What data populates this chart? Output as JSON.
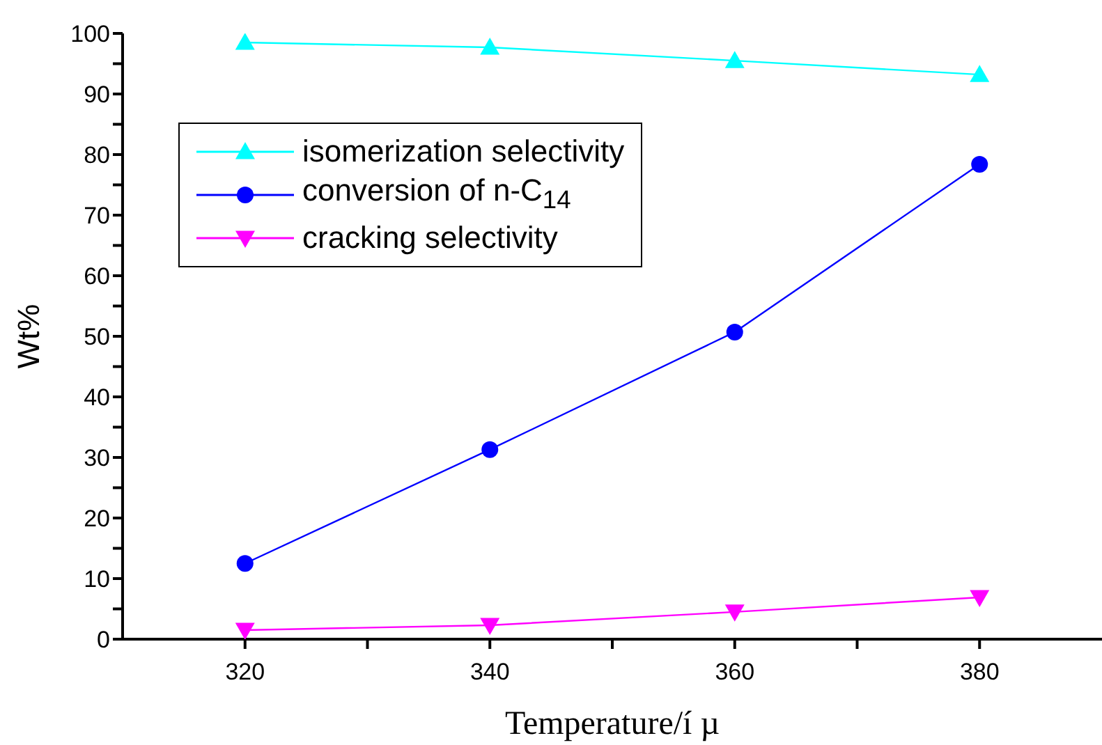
{
  "chart_data": {
    "type": "line",
    "xlabel": "Temperature/í µ",
    "ylabel": "Wt%",
    "x": [
      320,
      340,
      360,
      380
    ],
    "series": [
      {
        "name": "isomerization selectivity",
        "color": "#00ffff",
        "marker": "triangle",
        "values": [
          98.5,
          97.7,
          95.5,
          93.2
        ]
      },
      {
        "name": "conversion of n-C$_{14}$",
        "color": "#0000ff",
        "marker": "circle",
        "values": [
          12.5,
          31.3,
          50.7,
          78.4
        ]
      },
      {
        "name": "cracking selectivity",
        "color": "#ff00ff",
        "marker": "triangle-down",
        "values": [
          1.5,
          2.3,
          4.5,
          6.9
        ]
      }
    ],
    "xlim": [
      310,
      390
    ],
    "xticks": [
      320,
      {
        "value": 330,
        "label": null
      },
      340,
      {
        "value": 350,
        "label": null
      },
      360,
      {
        "value": 370,
        "label": null
      },
      380
    ],
    "ylim": [
      0,
      100
    ],
    "yticks": [
      0,
      {
        "value": 5,
        "label": null
      },
      10,
      {
        "value": 15,
        "label": null
      },
      20,
      {
        "value": 25,
        "label": null
      },
      30,
      {
        "value": 35,
        "label": null
      },
      40,
      {
        "value": 45,
        "label": null
      },
      50,
      {
        "value": 55,
        "label": null
      },
      60,
      {
        "value": 65,
        "label": null
      },
      70,
      {
        "value": 75,
        "label": null
      },
      80,
      {
        "value": 85,
        "label": null
      },
      90,
      {
        "value": 95,
        "label": null
      },
      100
    ],
    "grid": false,
    "legend": "top left",
    "line_style": "solid"
  }
}
